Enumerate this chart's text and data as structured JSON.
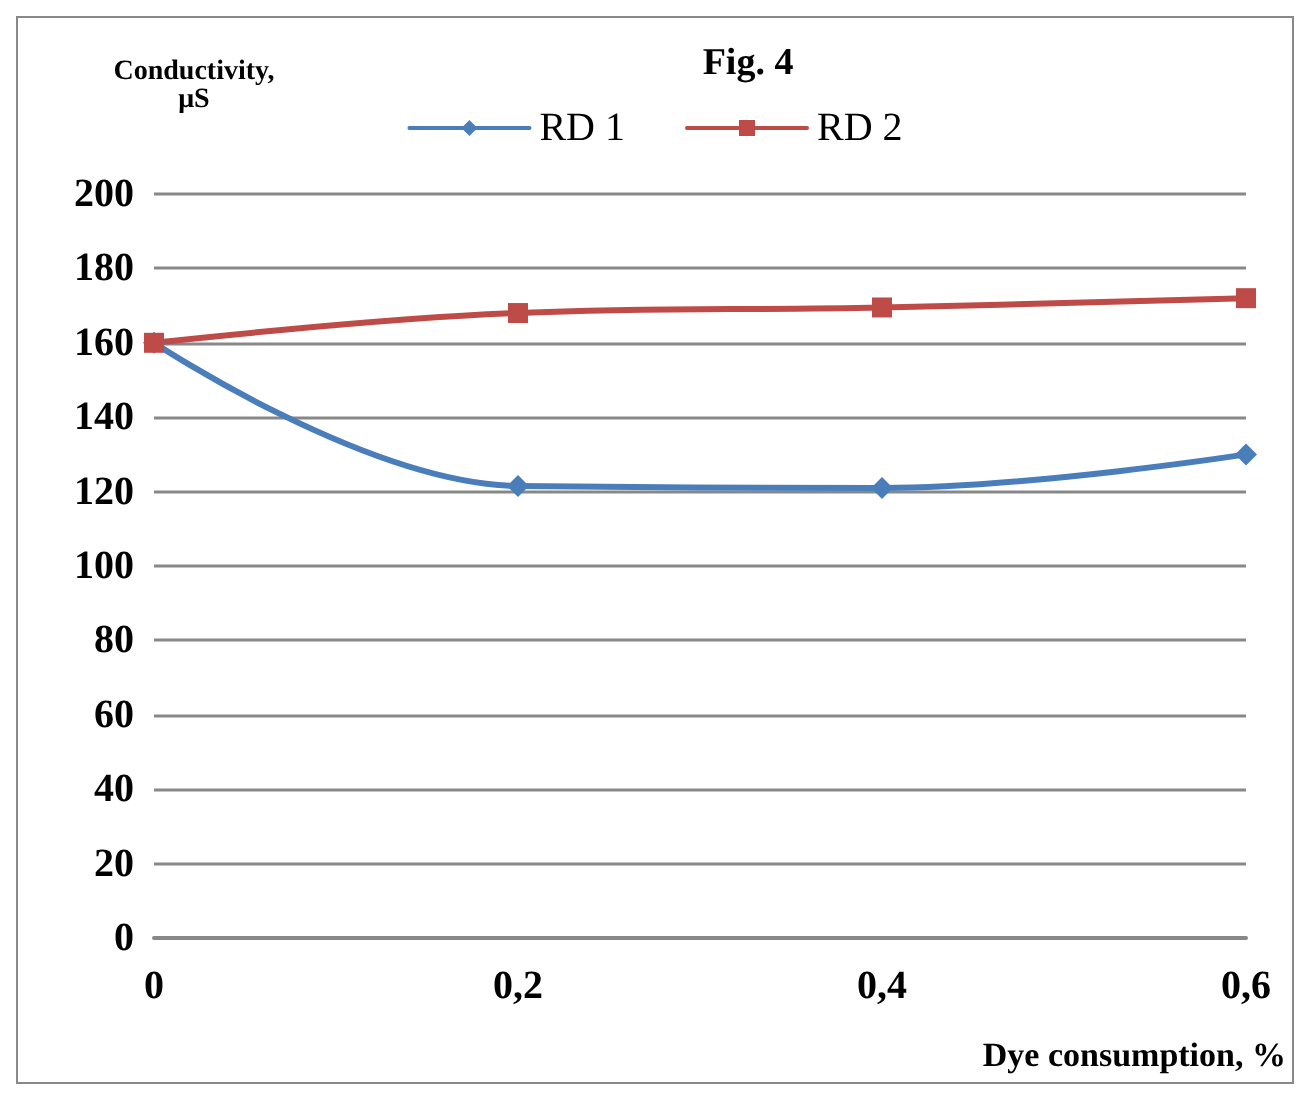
{
  "chart_data": {
    "type": "line",
    "title": "Fig. 4",
    "ylabel": "Conductivity,\nμS",
    "xlabel": "Dye consumption, %",
    "categories": [
      "0",
      "0,2",
      "0,4",
      "0,6"
    ],
    "series": [
      {
        "name": "RD 1",
        "color": "#4a7ebb",
        "values": [
          160,
          121.5,
          121,
          130
        ],
        "marker": "diamond"
      },
      {
        "name": "RD 2",
        "color": "#be4b48",
        "values": [
          160,
          168,
          169.5,
          172
        ],
        "marker": "square"
      }
    ],
    "ylim": [
      0,
      200
    ],
    "yticks": [
      0,
      20,
      40,
      60,
      80,
      100,
      120,
      140,
      160,
      180,
      200
    ],
    "grid": "y",
    "legend": "top",
    "line_style": "solid"
  }
}
